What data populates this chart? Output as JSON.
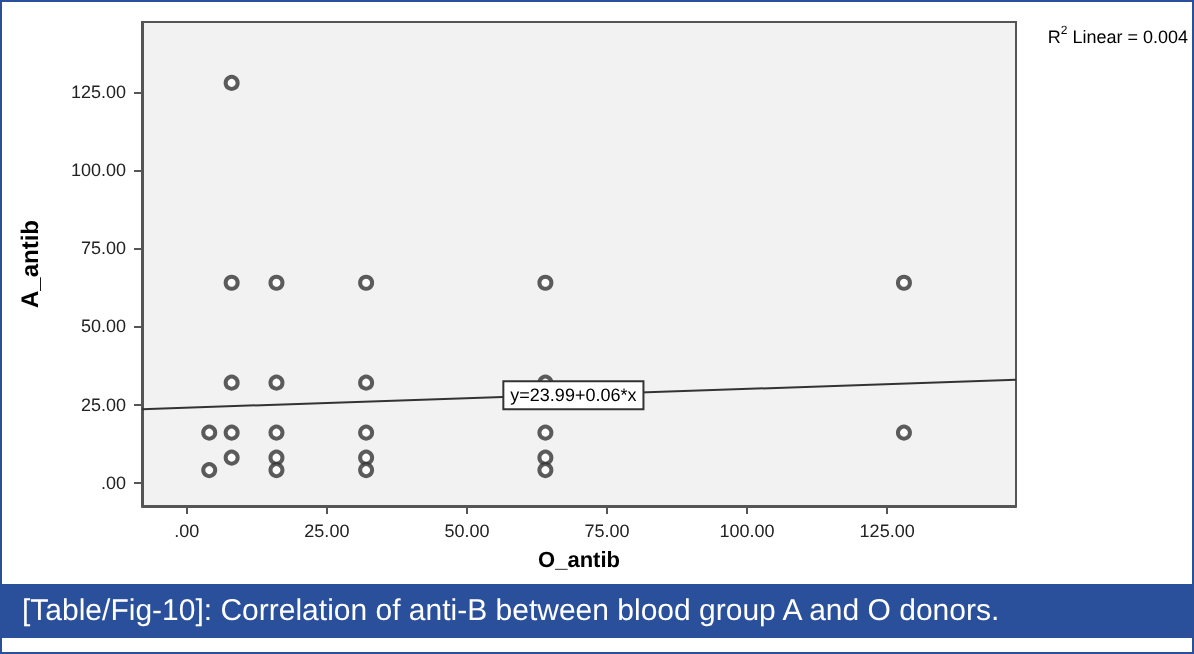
{
  "chart_data": {
    "type": "scatter",
    "xlabel": "O_antib",
    "ylabel": "A_antib",
    "xlim": [
      -8,
      148
    ],
    "ylim": [
      -7.5,
      147.5
    ],
    "xticks": [
      {
        "value": 0,
        "label": ".00"
      },
      {
        "value": 25,
        "label": "25.00"
      },
      {
        "value": 50,
        "label": "50.00"
      },
      {
        "value": 75,
        "label": "75.00"
      },
      {
        "value": 100,
        "label": "100.00"
      },
      {
        "value": 125,
        "label": "125.00"
      }
    ],
    "yticks": [
      {
        "value": 0,
        "label": ".00"
      },
      {
        "value": 25,
        "label": "25.00"
      },
      {
        "value": 50,
        "label": "50.00"
      },
      {
        "value": 75,
        "label": "75.00"
      },
      {
        "value": 100,
        "label": "100.00"
      },
      {
        "value": 125,
        "label": "125.00"
      }
    ],
    "grid": false,
    "series": [
      {
        "marker": "circle",
        "color": "#333333",
        "x": [
          8,
          8,
          16,
          32,
          64,
          128,
          8,
          16,
          32,
          64,
          4,
          8,
          16,
          32,
          64,
          128,
          8,
          16,
          32,
          64,
          4,
          16,
          32,
          64
        ],
        "values": [
          128,
          64,
          64,
          64,
          64,
          64,
          32,
          32,
          32,
          32,
          16,
          16,
          16,
          16,
          16,
          16,
          8,
          8,
          8,
          8,
          4,
          4,
          4,
          4
        ]
      },
      {
        "type": "line",
        "marker": "none",
        "color": "#333333",
        "x": [
          -8,
          148
        ],
        "values": [
          23.5,
          32.9
        ]
      }
    ],
    "annotations": [
      "R$^{2}$ Linear = 0.004",
      {
        "text": "y=23.99+0.06*x",
        "x": 69,
        "y": 28
      },
      "[Table/Fig-10]: Correlation of anti-B between blood group A and O donors."
    ]
  }
}
